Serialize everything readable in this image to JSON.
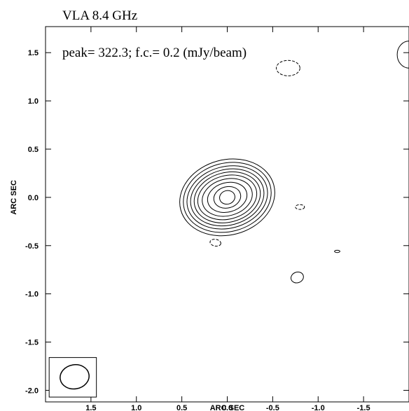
{
  "chart_data": {
    "type": "contour",
    "title": "VLA   8.4 GHz",
    "annotation": "peak= 322.3; f.c.= 0.2 (mJy/beam)",
    "xlabel": "ARC SEC",
    "ylabel": "ARC SEC",
    "xlim": [
      2.0,
      -2.0
    ],
    "ylim": [
      -2.12,
      1.77
    ],
    "x_ticks": [
      1.5,
      1.0,
      0.5,
      0.0,
      -0.5,
      -1.0,
      -1.5
    ],
    "x_tick_labels": [
      "1.5",
      "1.0",
      "0.5",
      "0.0",
      "-0.5",
      "-1.0",
      "-1.5"
    ],
    "y_ticks": [
      1.5,
      1.0,
      0.5,
      0.0,
      -0.5,
      -1.0,
      -1.5,
      -2.0
    ],
    "y_tick_labels": [
      "1.5",
      "1.0",
      "0.5",
      "0.0",
      "-0.5",
      "-1.0",
      "-1.5",
      "-2.0"
    ],
    "peak_mJy_per_beam": 322.3,
    "first_contour_mJy_per_beam": 0.2,
    "source_center": [
      0.0,
      0.0
    ],
    "main_source_contours": [
      {
        "rx": 0.53,
        "ry": 0.39
      },
      {
        "rx": 0.49,
        "ry": 0.355
      },
      {
        "rx": 0.45,
        "ry": 0.32
      },
      {
        "rx": 0.41,
        "ry": 0.288
      },
      {
        "rx": 0.37,
        "ry": 0.257
      },
      {
        "rx": 0.33,
        "ry": 0.225
      },
      {
        "rx": 0.28,
        "ry": 0.19
      },
      {
        "rx": 0.22,
        "ry": 0.152
      },
      {
        "rx": 0.15,
        "ry": 0.11
      },
      {
        "rx": 0.085,
        "ry": 0.07
      }
    ],
    "main_source_tilt_deg": -15,
    "minor_contours": [
      {
        "x": 0.13,
        "y": -0.47,
        "rx": 0.06,
        "ry": 0.035,
        "tilt": 10,
        "dashed": true
      },
      {
        "x": -0.8,
        "y": -0.1,
        "rx": 0.05,
        "ry": 0.025,
        "tilt": 0,
        "dashed": true
      },
      {
        "x": -0.67,
        "y": 1.34,
        "rx": 0.13,
        "ry": 0.08,
        "tilt": 0,
        "dashed": true
      },
      {
        "x": -0.77,
        "y": -0.83,
        "rx": 0.07,
        "ry": 0.055,
        "tilt": -20,
        "dashed": false
      },
      {
        "x": -1.21,
        "y": -0.56,
        "rx": 0.03,
        "ry": 0.012,
        "tilt": 0,
        "dashed": false
      }
    ],
    "edge_contour": {
      "x": -1.95,
      "y": 1.48,
      "rx": 0.13,
      "ry": 0.14,
      "dashed": false
    },
    "beam": {
      "x": 1.68,
      "y": -1.86,
      "rx": 0.16,
      "ry": 0.125,
      "tilt": -10
    },
    "beam_box": {
      "x0": 1.96,
      "x1": 1.44,
      "y0": -2.07,
      "y1": -1.66
    }
  }
}
